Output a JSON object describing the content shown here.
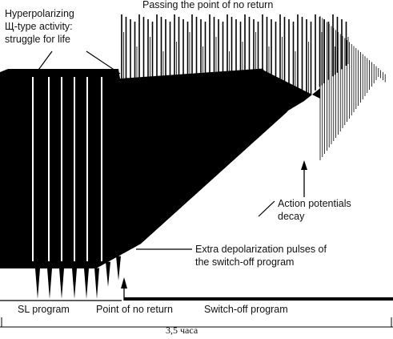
{
  "chart_data": {
    "type": "line",
    "title": "",
    "xlabel": "3,5 часа",
    "ylabel": "",
    "grid": false,
    "legend": "none",
    "trace_color": "#000000",
    "annotations": [
      {
        "id": "hyper",
        "text": "Hyperpolarizing\nЩ-type activity:\nstruggle for life"
      },
      {
        "id": "passing",
        "text": "Passing the point of no return"
      },
      {
        "id": "decay",
        "text": "Action potentials\ndecay"
      },
      {
        "id": "extra",
        "text": "Extra depolarization pulses of\nthe switch-off program"
      }
    ],
    "phases": [
      {
        "id": "sl",
        "text": "SL program"
      },
      {
        "id": "ponr",
        "text": "Point of no return"
      },
      {
        "id": "switchoff",
        "text": "Switch-off program"
      }
    ]
  }
}
